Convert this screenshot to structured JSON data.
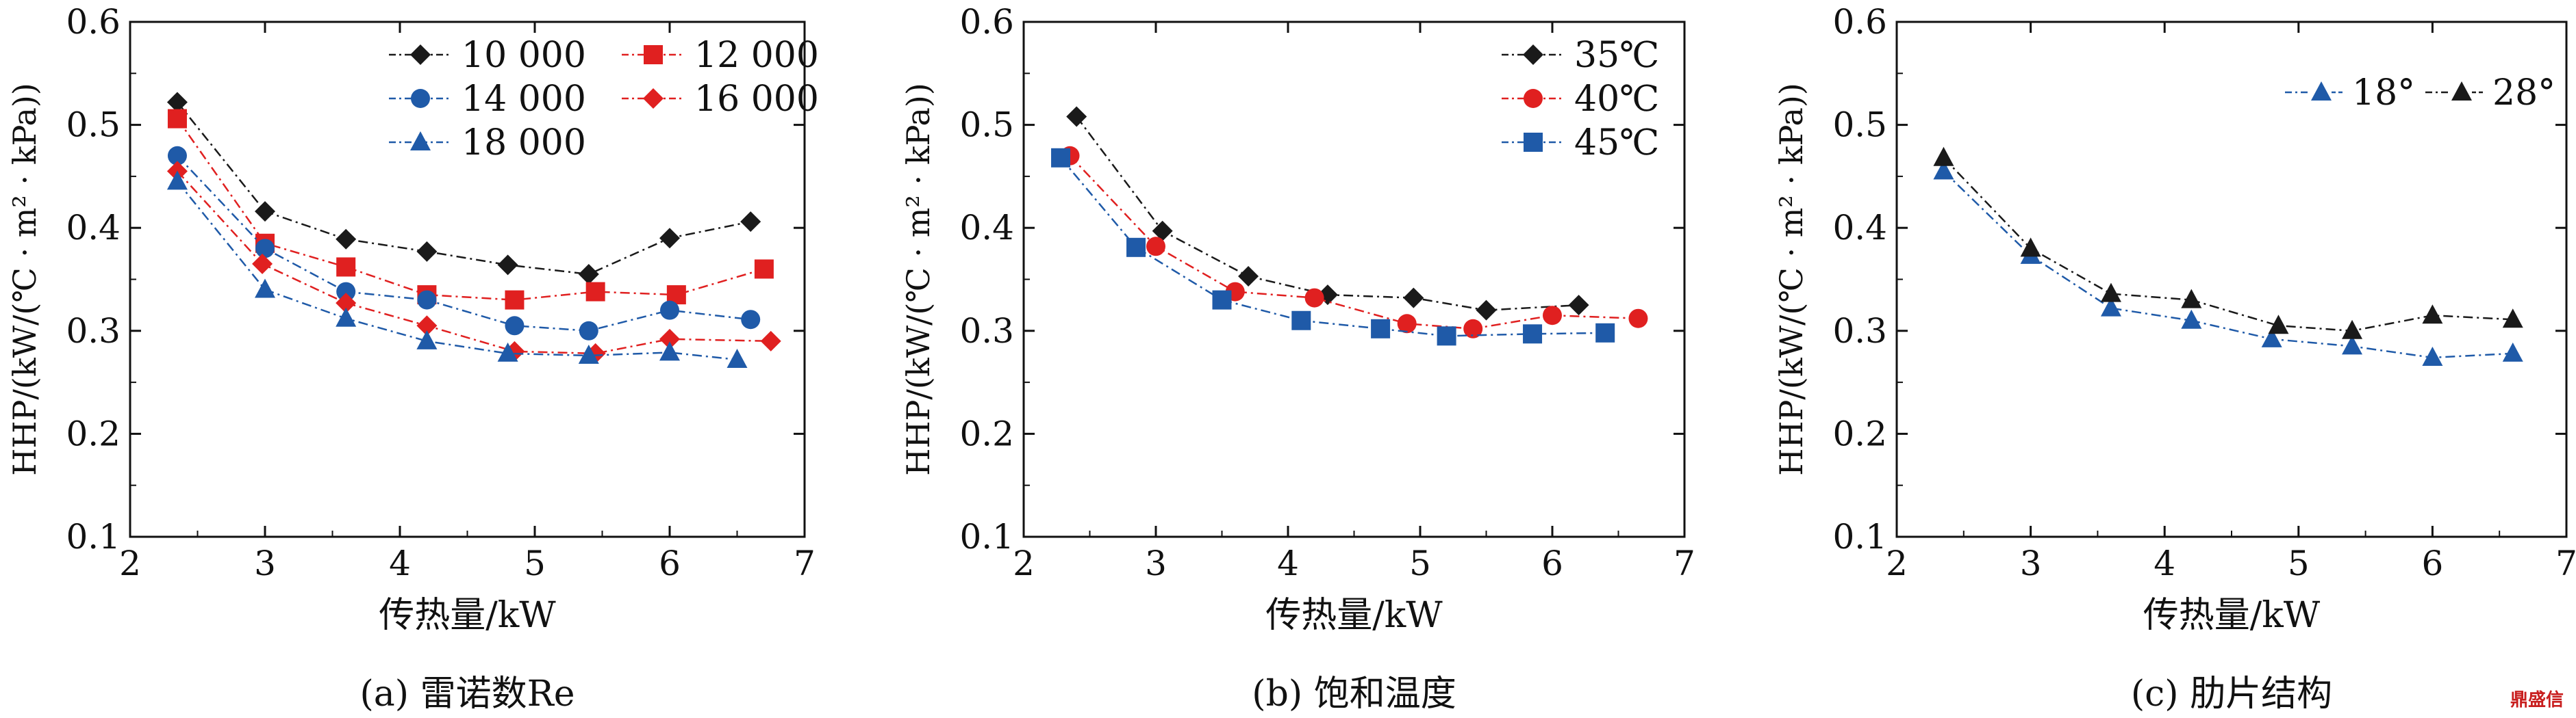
{
  "colors": {
    "black": "#1a1a1a",
    "red": "#e02020",
    "blue": "#1f5aa8"
  },
  "watermark": "鼎盛信",
  "chart_data": [
    {
      "type": "line",
      "subtitle": "(a) 雷诺数Re",
      "xlabel": "传热量/kW",
      "ylabel": "HHP/(kW/(℃ · m² · kPa))",
      "xlim": [
        2,
        7
      ],
      "ylim": [
        0.1,
        0.6
      ],
      "xticks": [
        2,
        3,
        4,
        5,
        6,
        7
      ],
      "yticks": [
        0.1,
        0.2,
        0.3,
        0.4,
        0.5,
        0.6
      ],
      "legend": "top-right",
      "series": [
        {
          "name": "10 000",
          "color": "#1a1a1a",
          "marker": "diamond",
          "x": [
            2.35,
            3.0,
            3.6,
            4.2,
            4.8,
            5.4,
            6.0,
            6.6
          ],
          "y": [
            0.522,
            0.416,
            0.389,
            0.377,
            0.364,
            0.355,
            0.39,
            0.406
          ]
        },
        {
          "name": "12 000",
          "color": "#e02020",
          "marker": "square",
          "x": [
            2.35,
            3.0,
            3.6,
            4.2,
            4.85,
            5.45,
            6.05,
            6.7
          ],
          "y": [
            0.506,
            0.385,
            0.362,
            0.335,
            0.33,
            0.338,
            0.335,
            0.36
          ]
        },
        {
          "name": "14 000",
          "color": "#1f5aa8",
          "marker": "circle",
          "x": [
            2.35,
            3.0,
            3.6,
            4.2,
            4.85,
            5.4,
            6.0,
            6.6
          ],
          "y": [
            0.47,
            0.38,
            0.338,
            0.33,
            0.305,
            0.3,
            0.32,
            0.311
          ]
        },
        {
          "name": "16 000",
          "color": "#e02020",
          "marker": "diamond",
          "x": [
            2.35,
            2.98,
            3.6,
            4.2,
            4.85,
            5.45,
            6.0,
            6.75
          ],
          "y": [
            0.455,
            0.365,
            0.327,
            0.305,
            0.28,
            0.278,
            0.292,
            0.29
          ]
        },
        {
          "name": "18 000",
          "color": "#1f5aa8",
          "marker": "triangle",
          "x": [
            2.35,
            3.0,
            3.6,
            4.2,
            4.8,
            5.4,
            6.0,
            6.5
          ],
          "y": [
            0.445,
            0.34,
            0.312,
            0.29,
            0.278,
            0.276,
            0.279,
            0.272
          ]
        }
      ]
    },
    {
      "type": "line",
      "subtitle": "(b) 饱和温度",
      "xlabel": "传热量/kW",
      "ylabel": "HHP/(kW/(℃ · m² · kPa))",
      "xlim": [
        2,
        7
      ],
      "ylim": [
        0.1,
        0.6
      ],
      "xticks": [
        2,
        3,
        4,
        5,
        6,
        7
      ],
      "yticks": [
        0.1,
        0.2,
        0.3,
        0.4,
        0.5,
        0.6
      ],
      "legend": "top-right",
      "series": [
        {
          "name": "35℃",
          "color": "#1a1a1a",
          "marker": "diamond",
          "x": [
            2.4,
            3.05,
            3.7,
            4.3,
            4.95,
            5.5,
            6.2
          ],
          "y": [
            0.508,
            0.397,
            0.353,
            0.335,
            0.332,
            0.32,
            0.325
          ]
        },
        {
          "name": "40℃",
          "color": "#e02020",
          "marker": "circle",
          "x": [
            2.35,
            3.0,
            3.6,
            4.2,
            4.9,
            5.4,
            6.0,
            6.65
          ],
          "y": [
            0.47,
            0.382,
            0.338,
            0.332,
            0.307,
            0.302,
            0.315,
            0.312
          ]
        },
        {
          "name": "45℃",
          "color": "#1f5aa8",
          "marker": "square",
          "x": [
            2.28,
            2.85,
            3.5,
            4.1,
            4.7,
            5.2,
            5.85,
            6.4
          ],
          "y": [
            0.468,
            0.381,
            0.33,
            0.31,
            0.302,
            0.295,
            0.297,
            0.298
          ]
        }
      ]
    },
    {
      "type": "line",
      "subtitle": "(c) 肋片结构",
      "xlabel": "传热量/kW",
      "ylabel": "HHP/(kW/(℃ · m² · kPa))",
      "xlim": [
        2,
        7
      ],
      "ylim": [
        0.1,
        0.6
      ],
      "xticks": [
        2,
        3,
        4,
        5,
        6,
        7
      ],
      "yticks": [
        0.1,
        0.2,
        0.3,
        0.4,
        0.5,
        0.6
      ],
      "legend": "top-right",
      "series": [
        {
          "name": "18°",
          "color": "#1f5aa8",
          "marker": "triangle",
          "x": [
            2.35,
            3.0,
            3.6,
            4.2,
            4.8,
            5.4,
            6.0,
            6.6
          ],
          "y": [
            0.455,
            0.373,
            0.322,
            0.31,
            0.292,
            0.285,
            0.274,
            0.278
          ]
        },
        {
          "name": "28°",
          "color": "#1a1a1a",
          "marker": "triangle",
          "x": [
            2.35,
            3.0,
            3.6,
            4.2,
            4.85,
            5.4,
            6.0,
            6.6
          ],
          "y": [
            0.468,
            0.38,
            0.336,
            0.33,
            0.305,
            0.3,
            0.315,
            0.311
          ]
        }
      ]
    }
  ]
}
